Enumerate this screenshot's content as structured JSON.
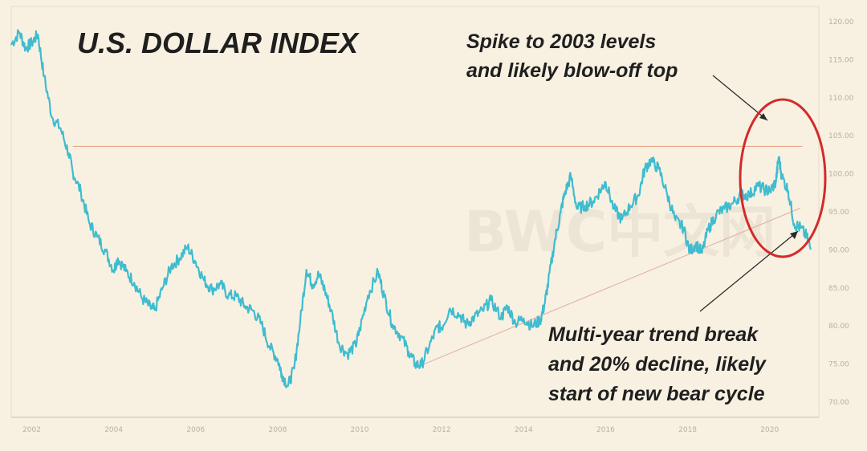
{
  "chart_data": {
    "type": "line",
    "title": "U.S. DOLLAR INDEX",
    "xlabel": "",
    "ylabel": "",
    "xlim": [
      2001.5,
      2021.2
    ],
    "ylim": [
      68,
      122
    ],
    "x_ticks": [
      2002,
      2004,
      2006,
      2008,
      2010,
      2012,
      2014,
      2016,
      2018,
      2020
    ],
    "x_tick_labels": [
      "2002",
      "2004",
      "2006",
      "2008",
      "2010",
      "2012",
      "2014",
      "2016",
      "2018",
      "2020"
    ],
    "y_ticks": [
      70,
      75,
      80,
      85,
      90,
      95,
      100,
      105,
      110,
      115,
      120
    ],
    "y_tick_labels": [
      "70.00",
      "75.00",
      "80.00",
      "85.00",
      "90.00",
      "95.00",
      "100.00",
      "105.00",
      "110.00",
      "115.00",
      "120.00"
    ],
    "grid": false,
    "series_color": "#3fbccf",
    "series": [
      {
        "name": "",
        "x": [
          2001.5,
          2001.7,
          2001.85,
          2002.0,
          2002.15,
          2002.3,
          2002.5,
          2002.7,
          2002.9,
          2003.0,
          2003.2,
          2003.4,
          2003.6,
          2003.8,
          2004.0,
          2004.1,
          2004.3,
          2004.5,
          2004.7,
          2004.9,
          2005.0,
          2005.2,
          2005.4,
          2005.6,
          2005.8,
          2006.0,
          2006.2,
          2006.4,
          2006.6,
          2006.8,
          2007.0,
          2007.2,
          2007.4,
          2007.6,
          2007.8,
          2008.0,
          2008.1,
          2008.25,
          2008.4,
          2008.55,
          2008.7,
          2008.85,
          2009.0,
          2009.15,
          2009.3,
          2009.5,
          2009.7,
          2009.9,
          2010.0,
          2010.2,
          2010.45,
          2010.6,
          2010.8,
          2011.0,
          2011.2,
          2011.35,
          2011.5,
          2011.7,
          2011.9,
          2012.0,
          2012.2,
          2012.45,
          2012.6,
          2012.8,
          2013.0,
          2013.2,
          2013.45,
          2013.6,
          2013.8,
          2014.0,
          2014.2,
          2014.4,
          2014.5,
          2014.6,
          2014.75,
          2014.9,
          2015.0,
          2015.15,
          2015.3,
          2015.5,
          2015.7,
          2015.9,
          2016.0,
          2016.2,
          2016.4,
          2016.6,
          2016.8,
          2016.95,
          2017.1,
          2017.3,
          2017.5,
          2017.7,
          2017.9,
          2018.05,
          2018.2,
          2018.35,
          2018.5,
          2018.7,
          2018.9,
          2019.1,
          2019.3,
          2019.5,
          2019.7,
          2019.9,
          2020.0,
          2020.15,
          2020.22,
          2020.3,
          2020.45,
          2020.6,
          2020.75,
          2020.9,
          2021.0
        ],
        "values": [
          117.0,
          118.6,
          116.5,
          117.2,
          118.3,
          112.8,
          107.4,
          106.0,
          102.7,
          100.3,
          97.6,
          93.6,
          91.7,
          89.8,
          87.3,
          88.9,
          87.2,
          85.7,
          83.6,
          82.4,
          82.1,
          85.1,
          87.8,
          88.9,
          90.4,
          88.4,
          86.0,
          84.8,
          85.5,
          84.0,
          83.9,
          82.6,
          82.0,
          80.3,
          77.3,
          75.6,
          73.7,
          72.1,
          74.4,
          80.6,
          87.4,
          85.4,
          86.8,
          84.7,
          82.1,
          77.6,
          76.3,
          77.5,
          79.5,
          84.0,
          87.1,
          83.9,
          80.2,
          78.7,
          76.6,
          75.0,
          74.8,
          77.4,
          79.9,
          79.8,
          82.3,
          81.4,
          80.2,
          81.2,
          82.0,
          83.4,
          81.1,
          82.6,
          80.4,
          81.0,
          80.0,
          80.7,
          82.6,
          85.7,
          90.9,
          94.9,
          97.4,
          99.7,
          95.4,
          95.8,
          96.4,
          98.1,
          98.9,
          95.4,
          94.0,
          95.8,
          97.2,
          100.6,
          101.8,
          100.6,
          97.3,
          93.9,
          92.9,
          89.8,
          90.8,
          89.6,
          92.7,
          94.7,
          95.4,
          96.1,
          97.3,
          97.2,
          98.4,
          97.9,
          97.7,
          98.9,
          102.2,
          99.6,
          97.8,
          93.4,
          92.9,
          91.8,
          90.1
        ]
      }
    ],
    "reference_lines": [
      {
        "type": "horizontal",
        "y": 103.6,
        "x_start": 2003.0,
        "x_end": 2020.8,
        "color": "#eaa88a"
      },
      {
        "type": "trend",
        "x_start": 2011.35,
        "y_start": 74.5,
        "x_end": 2020.75,
        "y_end": 95.5,
        "color": "#e4b6a4"
      }
    ],
    "annotations": [
      {
        "text_lines": [
          "Spike to 2003 levels",
          "and likely blow-off top"
        ]
      },
      {
        "text_lines": [
          "Multi-year trend break",
          "and 20% decline, likely",
          "start of new bear cycle"
        ]
      }
    ],
    "highlight_color": "#d42a2a"
  },
  "watermark": "BWC中文网"
}
